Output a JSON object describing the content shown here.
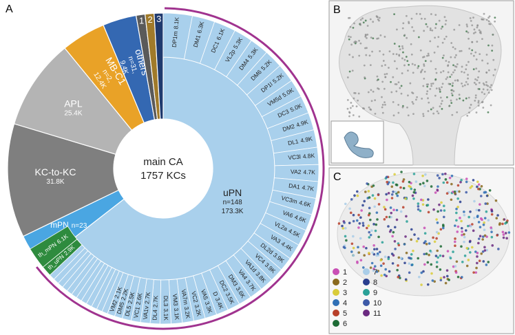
{
  "chart_data": {
    "type": "sunburst",
    "center_title": "main CA",
    "center_subtitle": "1757 KCs",
    "categories": [
      "uPN",
      "mPN",
      "KC-to-KC",
      "APL",
      "MB-C1",
      "others",
      "1",
      "2",
      "3"
    ],
    "counts": [
      "n=148",
      "n=23",
      null,
      null,
      "n=2,",
      "n=31,",
      null,
      null,
      null
    ],
    "values": [
      173.3,
      9.0,
      31.8,
      25.4,
      12.4,
      9.4,
      2.5,
      2.5,
      2.5
    ],
    "value_labels": [
      "173.3K",
      null,
      "31.8K",
      "25.4K",
      "12.4K",
      "9.4K",
      null,
      null,
      null
    ],
    "colors": [
      "#a9d0ec",
      "#4aa6e2",
      "#7f7f7f",
      "#b4b4b4",
      "#e9a227",
      "#3468b2",
      "#5a5a5a",
      "#a07a2a",
      "#1f3a6e"
    ],
    "outer": {
      "color": "#a9d0ec",
      "categories": [
        "DP1m",
        "DM1",
        "DC1",
        "VL2p",
        "DM4",
        "DM6",
        "DP1l",
        "VM5d",
        "DC3",
        "DM2",
        "DL1",
        "VC3l",
        "VA2",
        "DA1",
        "VC3m",
        "VA6",
        "VL2a",
        "VA3",
        "DL2d",
        "VC4",
        "VA1d",
        "VA4",
        "DM3",
        "DC2",
        "D",
        "VA5",
        "VC2",
        "VA7m",
        "VM3",
        "DL3",
        "DL4",
        "VA1v",
        "VC1",
        "DL5",
        "DM5",
        "VM2",
        null,
        null,
        null,
        null,
        null,
        null,
        null,
        null,
        null,
        null,
        null,
        null
      ],
      "values": [
        8.1,
        6.3,
        6.1,
        5.3,
        5.3,
        5.2,
        5.2,
        5.0,
        5.0,
        4.9,
        4.9,
        4.8,
        4.7,
        4.7,
        4.6,
        4.6,
        4.5,
        4.4,
        3.9,
        3.9,
        3.8,
        3.7,
        3.6,
        3.5,
        3.4,
        3.3,
        3.2,
        3.2,
        3.1,
        3.1,
        2.7,
        2.7,
        2.6,
        2.5,
        2.2,
        2.1,
        1.6,
        1.6,
        1.6,
        1.6,
        1.6,
        1.6,
        1.6,
        1.6,
        1.6,
        1.6,
        1.6,
        1.6
      ],
      "value_labels": [
        "8.1K",
        "6.3K",
        "6.1K",
        "5.3K",
        "5.3K",
        "5.2K",
        "5.2K",
        "5.0K",
        "5.0K",
        "4.9K",
        "4.9K",
        "4.8K",
        "4.7K",
        "4.7K",
        "4.6K",
        "4.6K",
        "4.5K",
        "4.4K",
        "3.9K",
        "3.9K",
        "3.8K",
        "3.7K",
        "3.6K",
        "3.5K",
        "3.4K",
        "3.3K",
        "3.2K",
        "3.2K",
        "3.1K",
        "3.1K",
        "2.7K",
        "2.7K",
        "2.6K",
        "2.5K",
        "2.2K",
        "2.1K",
        null,
        null,
        null,
        null,
        null,
        null,
        null,
        null,
        null,
        null,
        null,
        null
      ]
    },
    "outer_highlight": {
      "color": "#2e8b3e",
      "categories": [
        "th_uPN",
        "th_mPN"
      ],
      "values": [
        2.9,
        6.1
      ],
      "value_labels": [
        "2.9K",
        "6.1K"
      ]
    },
    "bracket_color": "#a0338f"
  },
  "panels": {
    "a": "A",
    "b": "B",
    "c": "C"
  },
  "legend": {
    "items": [
      {
        "label": "1",
        "color": "#c94fb5"
      },
      {
        "label": "2",
        "color": "#8a6a1f"
      },
      {
        "label": "3",
        "color": "#d9cc3a"
      },
      {
        "label": "4",
        "color": "#2f6fb5"
      },
      {
        "label": "5",
        "color": "#b8402a"
      },
      {
        "label": "6",
        "color": "#1d6b35"
      },
      {
        "label": "7",
        "color": "#a9cde8"
      },
      {
        "label": "8",
        "color": "#2a3f8f"
      },
      {
        "label": "9",
        "color": "#2aa198"
      },
      {
        "label": "10",
        "color": "#3d5aa8"
      },
      {
        "label": "11",
        "color": "#6b2a80"
      }
    ]
  }
}
